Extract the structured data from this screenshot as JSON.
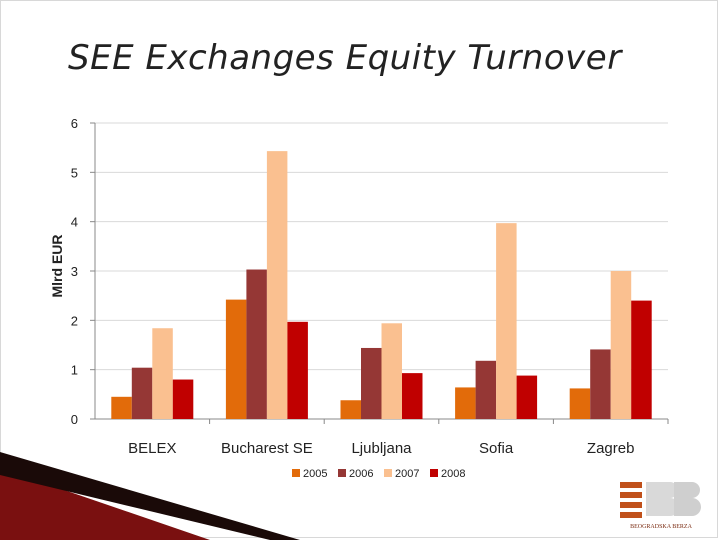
{
  "slide": {
    "title": "SEE Exchanges Equity Turnover"
  },
  "logo": {
    "name": "BEOGRADSKA BERZA"
  },
  "colors": {
    "series": [
      "#e26b0a",
      "#953735",
      "#fac090",
      "#c00000"
    ],
    "decor_dark": "#1a0a08",
    "decor_red": "#7a1010"
  },
  "chart_data": {
    "type": "bar",
    "title": "",
    "xlabel": "",
    "ylabel": "Mlrd EUR",
    "ylim": [
      0,
      6
    ],
    "yticks": [
      "0",
      "1",
      "2",
      "3",
      "4",
      "5",
      "6"
    ],
    "grid": true,
    "legend_position": "bottom",
    "categories": [
      "BELEX",
      "Bucharest SE",
      "Ljubljana",
      "Sofia",
      "Zagreb"
    ],
    "series": [
      {
        "name": "2005",
        "values": [
          0.45,
          2.42,
          0.38,
          0.64,
          0.62
        ]
      },
      {
        "name": "2006",
        "values": [
          1.04,
          3.03,
          1.44,
          1.18,
          1.41
        ]
      },
      {
        "name": "2007",
        "values": [
          1.84,
          5.43,
          1.94,
          3.97,
          3.0
        ]
      },
      {
        "name": "2008",
        "values": [
          0.8,
          1.97,
          0.93,
          0.88,
          2.4
        ]
      }
    ]
  }
}
